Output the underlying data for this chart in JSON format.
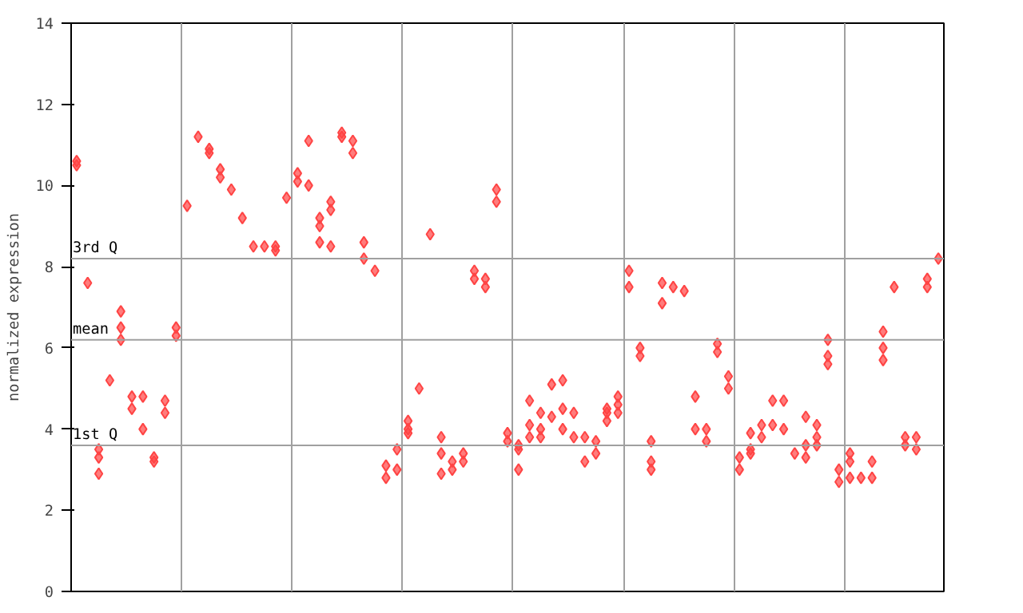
{
  "chart_data": {
    "type": "scatter",
    "ylabel": "normalized expression",
    "categories": [
      null,
      null,
      null,
      null,
      null,
      null,
      null,
      null,
      null,
      null,
      null,
      null,
      null,
      null,
      null,
      null,
      null,
      null,
      null,
      null,
      null,
      null,
      null,
      null,
      null,
      null,
      null,
      null,
      null,
      null,
      null,
      null,
      null,
      null,
      null,
      null,
      null,
      null,
      null,
      null,
      null,
      null,
      null,
      null,
      null,
      null,
      null,
      null,
      null,
      null,
      null,
      null,
      null,
      null,
      null,
      null,
      null,
      null,
      null,
      null,
      null,
      null,
      null,
      null,
      null,
      null,
      null,
      null,
      null,
      null,
      null,
      null,
      null,
      null,
      null,
      null,
      null,
      null,
      null
    ],
    "series": [
      {
        "color": "#ff4444",
        "values": [
          10.6,
          7.6,
          3.5,
          5.2,
          6.9,
          4.8,
          4.8,
          3.3,
          4.7,
          6.5,
          9.5,
          11.2,
          10.9,
          10.4,
          9.9,
          9.2,
          8.5,
          8.5,
          8.5,
          9.7,
          10.3,
          11.1,
          9.2,
          9.6,
          11.3,
          11.1,
          8.6,
          7.9,
          3.1,
          3.5,
          4.2,
          5.0,
          8.8,
          3.8,
          3.2,
          3.4,
          7.9,
          7.7,
          9.9,
          3.9,
          3.6,
          4.7,
          4.4,
          5.1,
          5.2,
          4.4,
          3.8,
          3.7,
          4.5,
          4.8,
          7.9,
          6.0,
          3.7,
          7.6,
          7.5,
          7.4,
          4.8,
          4.0,
          6.1,
          5.3,
          3.3,
          3.9,
          4.1,
          4.7,
          4.7,
          3.4,
          4.3,
          4.1,
          6.2,
          3.0,
          3.4,
          2.8,
          3.2,
          6.4,
          7.5,
          3.8,
          3.8,
          7.7,
          8.2
        ]
      },
      {
        "color": "#ff4444",
        "values": [
          10.5,
          null,
          3.3,
          null,
          6.5,
          4.5,
          4.0,
          3.2,
          4.4,
          6.3,
          null,
          null,
          10.8,
          10.2,
          null,
          null,
          null,
          null,
          8.4,
          null,
          10.1,
          10.0,
          9.0,
          9.4,
          11.2,
          10.8,
          8.2,
          null,
          2.8,
          3.0,
          4.0,
          null,
          null,
          3.4,
          3.0,
          3.2,
          7.7,
          7.5,
          9.6,
          3.7,
          3.5,
          4.1,
          4.0,
          4.3,
          4.5,
          3.8,
          3.2,
          3.4,
          4.4,
          4.6,
          7.5,
          5.8,
          3.2,
          7.1,
          null,
          null,
          4.0,
          3.7,
          5.9,
          5.0,
          3.0,
          3.5,
          3.8,
          4.1,
          4.0,
          null,
          3.6,
          3.8,
          5.8,
          2.7,
          3.2,
          null,
          2.8,
          6.0,
          null,
          3.6,
          3.5,
          7.5,
          null
        ]
      },
      {
        "color": "#ff4444",
        "values": [
          null,
          null,
          2.9,
          null,
          6.2,
          null,
          null,
          null,
          null,
          null,
          null,
          null,
          null,
          null,
          null,
          null,
          null,
          null,
          null,
          null,
          null,
          null,
          8.6,
          8.5,
          null,
          null,
          null,
          null,
          null,
          null,
          3.9,
          null,
          null,
          2.9,
          null,
          null,
          null,
          null,
          null,
          null,
          3.0,
          3.8,
          3.8,
          null,
          4.0,
          null,
          null,
          null,
          4.2,
          4.4,
          null,
          null,
          3.0,
          null,
          null,
          null,
          null,
          null,
          null,
          null,
          null,
          3.4,
          null,
          null,
          null,
          null,
          3.3,
          3.6,
          5.6,
          null,
          2.8,
          null,
          null,
          5.7,
          null,
          null,
          null,
          null,
          null
        ]
      }
    ],
    "marker": "diamond",
    "ylim": [
      0,
      14
    ],
    "yticks": [
      0,
      2,
      4,
      6,
      8,
      10,
      12,
      14
    ],
    "grid": "x",
    "tick_labels": "y",
    "ref_lines": [
      {
        "axis": "y",
        "value": 8.2,
        "label": "3rd Q",
        "color": "#a0a0a0"
      },
      {
        "axis": "y",
        "value": 6.2,
        "label": "mean",
        "color": "#a0a0a0"
      },
      {
        "axis": "y",
        "value": 3.6,
        "label": "1st Q",
        "color": "#a0a0a0"
      }
    ]
  }
}
